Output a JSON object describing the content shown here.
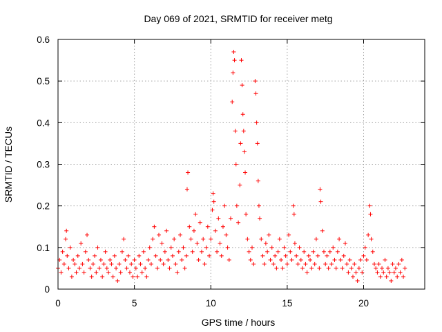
{
  "chart_data": {
    "type": "scatter",
    "title": "Day 069 of 2021, SRMTID for receiver metg",
    "xlabel": "GPS time / hours",
    "ylabel": "SRMTID / TECUs",
    "xlim": [
      0,
      24
    ],
    "ylim": [
      0,
      0.6
    ],
    "xticks": [
      0,
      5,
      10,
      15,
      20
    ],
    "yticks": [
      0,
      0.1,
      0.2,
      0.3,
      0.4,
      0.5,
      0.6
    ],
    "xtick_labels": [
      "0",
      "5",
      "10",
      "15",
      "20"
    ],
    "ytick_labels": [
      "0",
      "0.1",
      "0.2",
      "0.3",
      "0.4",
      "0.5",
      "0.6"
    ],
    "grid": true,
    "marker": "plus",
    "color": "#ff0000",
    "series": [
      {
        "name": "SRMTID",
        "points": [
          [
            0.0,
            0.05
          ],
          [
            0.1,
            0.07
          ],
          [
            0.2,
            0.04
          ],
          [
            0.3,
            0.09
          ],
          [
            0.4,
            0.06
          ],
          [
            0.5,
            0.12
          ],
          [
            0.55,
            0.14
          ],
          [
            0.6,
            0.08
          ],
          [
            0.7,
            0.05
          ],
          [
            0.8,
            0.1
          ],
          [
            0.9,
            0.03
          ],
          [
            1.0,
            0.07
          ],
          [
            1.1,
            0.06
          ],
          [
            1.2,
            0.04
          ],
          [
            1.3,
            0.08
          ],
          [
            1.4,
            0.05
          ],
          [
            1.5,
            0.11
          ],
          [
            1.6,
            0.06
          ],
          [
            1.7,
            0.04
          ],
          [
            1.8,
            0.09
          ],
          [
            1.9,
            0.13
          ],
          [
            2.0,
            0.07
          ],
          [
            2.1,
            0.05
          ],
          [
            2.2,
            0.03
          ],
          [
            2.3,
            0.06
          ],
          [
            2.4,
            0.08
          ],
          [
            2.5,
            0.04
          ],
          [
            2.6,
            0.1
          ],
          [
            2.7,
            0.05
          ],
          [
            2.8,
            0.07
          ],
          [
            2.9,
            0.03
          ],
          [
            3.0,
            0.06
          ],
          [
            3.1,
            0.09
          ],
          [
            3.2,
            0.05
          ],
          [
            3.3,
            0.04
          ],
          [
            3.4,
            0.07
          ],
          [
            3.5,
            0.06
          ],
          [
            3.6,
            0.03
          ],
          [
            3.7,
            0.08
          ],
          [
            3.8,
            0.05
          ],
          [
            3.9,
            0.02
          ],
          [
            4.0,
            0.06
          ],
          [
            4.1,
            0.04
          ],
          [
            4.2,
            0.09
          ],
          [
            4.3,
            0.12
          ],
          [
            4.4,
            0.07
          ],
          [
            4.5,
            0.05
          ],
          [
            4.6,
            0.08
          ],
          [
            4.7,
            0.04
          ],
          [
            4.8,
            0.06
          ],
          [
            4.9,
            0.03
          ],
          [
            5.0,
            0.07
          ],
          [
            5.1,
            0.05
          ],
          [
            5.2,
            0.03
          ],
          [
            5.3,
            0.08
          ],
          [
            5.4,
            0.06
          ],
          [
            5.5,
            0.04
          ],
          [
            5.6,
            0.09
          ],
          [
            5.7,
            0.05
          ],
          [
            5.8,
            0.03
          ],
          [
            5.9,
            0.07
          ],
          [
            6.0,
            0.1
          ],
          [
            6.1,
            0.06
          ],
          [
            6.2,
            0.12
          ],
          [
            6.3,
            0.15
          ],
          [
            6.4,
            0.08
          ],
          [
            6.5,
            0.05
          ],
          [
            6.6,
            0.13
          ],
          [
            6.7,
            0.07
          ],
          [
            6.8,
            0.11
          ],
          [
            6.9,
            0.06
          ],
          [
            7.0,
            0.09
          ],
          [
            7.1,
            0.14
          ],
          [
            7.2,
            0.07
          ],
          [
            7.3,
            0.05
          ],
          [
            7.4,
            0.1
          ],
          [
            7.5,
            0.08
          ],
          [
            7.6,
            0.12
          ],
          [
            7.7,
            0.06
          ],
          [
            7.8,
            0.04
          ],
          [
            7.9,
            0.09
          ],
          [
            8.0,
            0.13
          ],
          [
            8.1,
            0.07
          ],
          [
            8.2,
            0.1
          ],
          [
            8.3,
            0.05
          ],
          [
            8.4,
            0.08
          ],
          [
            8.45,
            0.24
          ],
          [
            8.5,
            0.28
          ],
          [
            8.6,
            0.15
          ],
          [
            8.7,
            0.12
          ],
          [
            8.8,
            0.09
          ],
          [
            8.9,
            0.14
          ],
          [
            9.0,
            0.18
          ],
          [
            9.1,
            0.11
          ],
          [
            9.2,
            0.07
          ],
          [
            9.3,
            0.16
          ],
          [
            9.4,
            0.09
          ],
          [
            9.5,
            0.12
          ],
          [
            9.6,
            0.06
          ],
          [
            9.7,
            0.1
          ],
          [
            9.8,
            0.15
          ],
          [
            9.9,
            0.08
          ],
          [
            10.0,
            0.12
          ],
          [
            10.1,
            0.19
          ],
          [
            10.15,
            0.23
          ],
          [
            10.2,
            0.21
          ],
          [
            10.3,
            0.14
          ],
          [
            10.4,
            0.09
          ],
          [
            10.5,
            0.17
          ],
          [
            10.6,
            0.11
          ],
          [
            10.7,
            0.08
          ],
          [
            10.8,
            0.15
          ],
          [
            10.9,
            0.2
          ],
          [
            11.0,
            0.13
          ],
          [
            11.1,
            0.1
          ],
          [
            11.2,
            0.07
          ],
          [
            11.3,
            0.17
          ],
          [
            11.4,
            0.45
          ],
          [
            11.45,
            0.52
          ],
          [
            11.5,
            0.57
          ],
          [
            11.55,
            0.55
          ],
          [
            11.6,
            0.38
          ],
          [
            11.65,
            0.3
          ],
          [
            11.7,
            0.2
          ],
          [
            11.8,
            0.16
          ],
          [
            11.9,
            0.25
          ],
          [
            11.95,
            0.35
          ],
          [
            12.0,
            0.55
          ],
          [
            12.05,
            0.49
          ],
          [
            12.1,
            0.42
          ],
          [
            12.15,
            0.38
          ],
          [
            12.2,
            0.33
          ],
          [
            12.25,
            0.28
          ],
          [
            12.3,
            0.18
          ],
          [
            12.4,
            0.12
          ],
          [
            12.5,
            0.09
          ],
          [
            12.6,
            0.07
          ],
          [
            12.7,
            0.1
          ],
          [
            12.8,
            0.06
          ],
          [
            12.9,
            0.5
          ],
          [
            12.95,
            0.47
          ],
          [
            13.0,
            0.4
          ],
          [
            13.05,
            0.35
          ],
          [
            13.1,
            0.26
          ],
          [
            13.15,
            0.2
          ],
          [
            13.2,
            0.17
          ],
          [
            13.3,
            0.12
          ],
          [
            13.4,
            0.08
          ],
          [
            13.5,
            0.06
          ],
          [
            13.6,
            0.11
          ],
          [
            13.7,
            0.09
          ],
          [
            13.8,
            0.13
          ],
          [
            13.9,
            0.07
          ],
          [
            14.0,
            0.1
          ],
          [
            14.1,
            0.06
          ],
          [
            14.2,
            0.08
          ],
          [
            14.3,
            0.05
          ],
          [
            14.4,
            0.09
          ],
          [
            14.5,
            0.12
          ],
          [
            14.6,
            0.07
          ],
          [
            14.7,
            0.05
          ],
          [
            14.8,
            0.1
          ],
          [
            14.9,
            0.08
          ],
          [
            15.0,
            0.06
          ],
          [
            15.1,
            0.13
          ],
          [
            15.2,
            0.09
          ],
          [
            15.3,
            0.07
          ],
          [
            15.4,
            0.2
          ],
          [
            15.45,
            0.18
          ],
          [
            15.5,
            0.11
          ],
          [
            15.6,
            0.08
          ],
          [
            15.7,
            0.06
          ],
          [
            15.8,
            0.1
          ],
          [
            15.9,
            0.07
          ],
          [
            16.0,
            0.05
          ],
          [
            16.1,
            0.09
          ],
          [
            16.2,
            0.06
          ],
          [
            16.3,
            0.04
          ],
          [
            16.4,
            0.08
          ],
          [
            16.5,
            0.07
          ],
          [
            16.6,
            0.05
          ],
          [
            16.7,
            0.09
          ],
          [
            16.8,
            0.06
          ],
          [
            16.9,
            0.12
          ],
          [
            17.0,
            0.08
          ],
          [
            17.1,
            0.05
          ],
          [
            17.15,
            0.24
          ],
          [
            17.2,
            0.21
          ],
          [
            17.3,
            0.14
          ],
          [
            17.4,
            0.09
          ],
          [
            17.5,
            0.06
          ],
          [
            17.6,
            0.08
          ],
          [
            17.7,
            0.05
          ],
          [
            17.8,
            0.09
          ],
          [
            17.9,
            0.06
          ],
          [
            18.0,
            0.1
          ],
          [
            18.1,
            0.07
          ],
          [
            18.2,
            0.05
          ],
          [
            18.3,
            0.09
          ],
          [
            18.4,
            0.12
          ],
          [
            18.5,
            0.07
          ],
          [
            18.6,
            0.05
          ],
          [
            18.7,
            0.08
          ],
          [
            18.8,
            0.11
          ],
          [
            18.9,
            0.06
          ],
          [
            19.0,
            0.04
          ],
          [
            19.1,
            0.07
          ],
          [
            19.2,
            0.05
          ],
          [
            19.3,
            0.03
          ],
          [
            19.4,
            0.06
          ],
          [
            19.5,
            0.04
          ],
          [
            19.6,
            0.02
          ],
          [
            19.7,
            0.05
          ],
          [
            19.8,
            0.07
          ],
          [
            19.9,
            0.04
          ],
          [
            20.0,
            0.08
          ],
          [
            20.1,
            0.1
          ],
          [
            20.2,
            0.07
          ],
          [
            20.3,
            0.13
          ],
          [
            20.4,
            0.2
          ],
          [
            20.45,
            0.18
          ],
          [
            20.5,
            0.12
          ],
          [
            20.6,
            0.09
          ],
          [
            20.7,
            0.06
          ],
          [
            20.8,
            0.05
          ],
          [
            20.9,
            0.04
          ],
          [
            21.0,
            0.06
          ],
          [
            21.1,
            0.03
          ],
          [
            21.2,
            0.05
          ],
          [
            21.3,
            0.04
          ],
          [
            21.4,
            0.07
          ],
          [
            21.5,
            0.03
          ],
          [
            21.6,
            0.05
          ],
          [
            21.7,
            0.04
          ],
          [
            21.8,
            0.02
          ],
          [
            21.9,
            0.06
          ],
          [
            22.0,
            0.04
          ],
          [
            22.1,
            0.05
          ],
          [
            22.2,
            0.03
          ],
          [
            22.3,
            0.06
          ],
          [
            22.4,
            0.04
          ],
          [
            22.5,
            0.07
          ],
          [
            22.6,
            0.03
          ],
          [
            22.7,
            0.05
          ]
        ]
      }
    ]
  }
}
